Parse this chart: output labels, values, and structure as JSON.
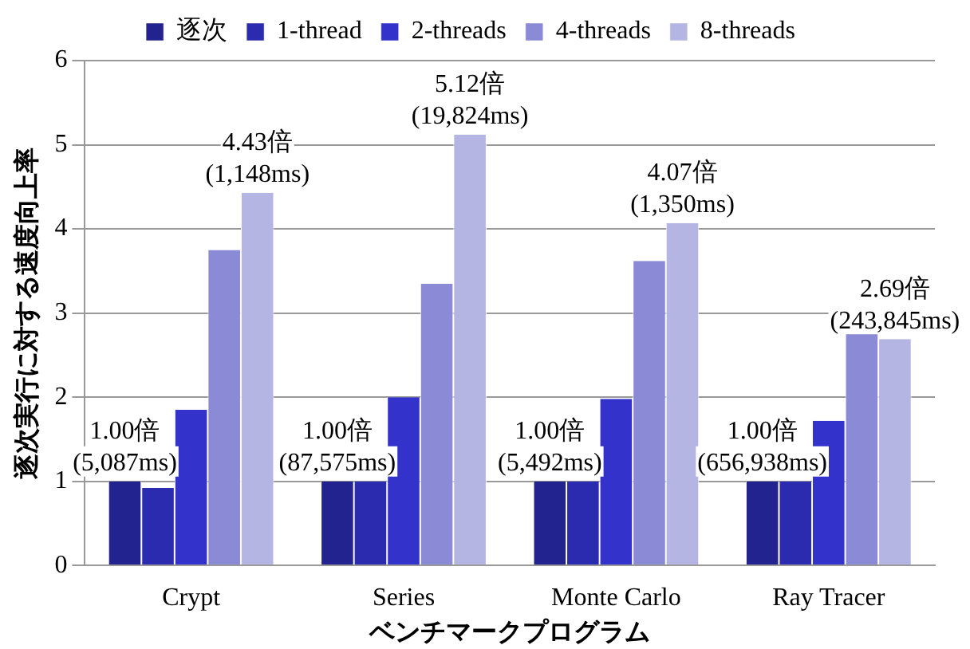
{
  "chart_data": {
    "type": "bar",
    "xlabel": "ベンチマークプログラム",
    "ylabel": "逐次実行に対する速度向上率",
    "categories": [
      "Crypt",
      "Series",
      "Monte Carlo",
      "Ray Tracer"
    ],
    "series": [
      {
        "name": "逐次",
        "color": "#23238f",
        "values": [
          1,
          1,
          1,
          1
        ],
        "value_labels": [
          "1.00倍\n(5,087ms)",
          "1.00倍\n(87,575ms)",
          "1.00倍\n(5,492ms)",
          "1.00倍\n(656,938ms)"
        ]
      },
      {
        "name": "1-thread",
        "color": "#2b2bb0",
        "values": [
          0.92,
          1,
          1,
          1
        ]
      },
      {
        "name": "2-threads",
        "color": "#3333cc",
        "values": [
          1.85,
          2.0,
          1.98,
          1.72
        ]
      },
      {
        "name": "4-threads",
        "color": "#8a8ad6",
        "values": [
          3.75,
          3.35,
          3.62,
          2.77
        ]
      },
      {
        "name": "8-threads",
        "color": "#b5b5e3",
        "values": [
          4.43,
          5.12,
          4.07,
          2.69
        ],
        "value_labels": [
          "4.43倍\n(1,148ms)",
          "5.12倍\n(19,824ms)",
          "4.07倍\n(1,350ms)",
          "2.69倍\n(243,845ms)"
        ]
      }
    ],
    "ylim": [
      0,
      6
    ],
    "yticks": [
      0,
      1,
      2,
      3,
      4,
      5,
      6
    ],
    "grid": "y",
    "legend": "top"
  }
}
